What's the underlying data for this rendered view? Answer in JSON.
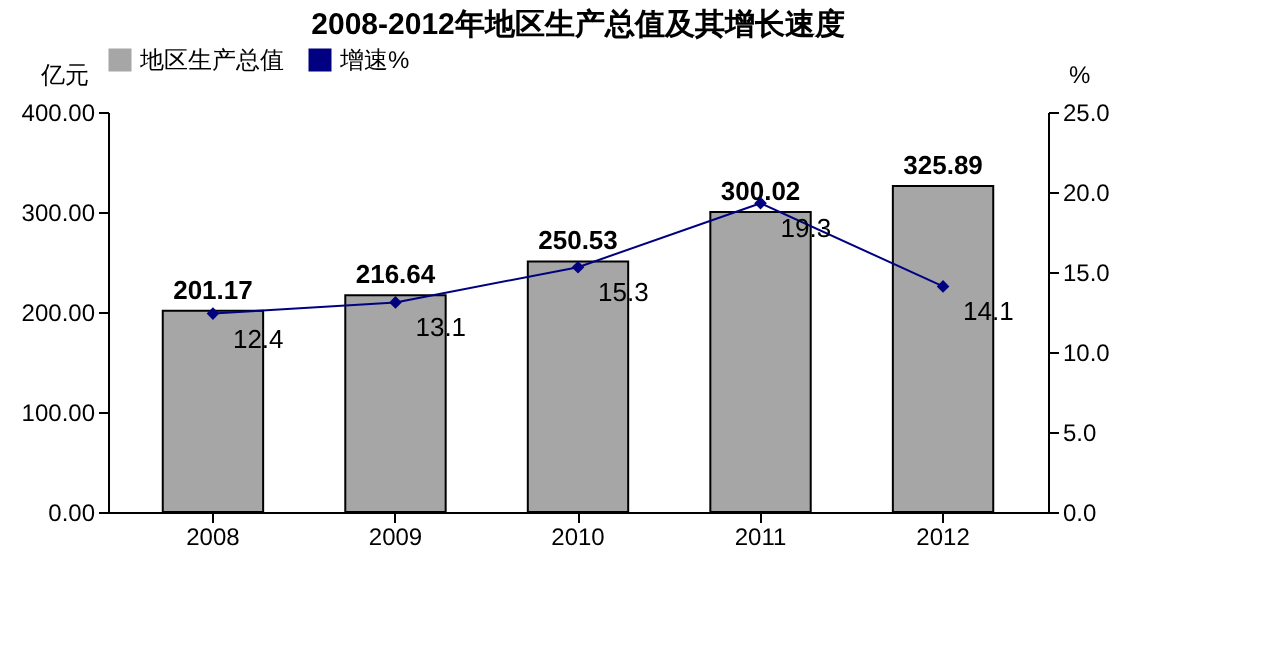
{
  "chart_data": {
    "type": "bar",
    "title": "2008-2012年地区生产总值及其增长速度",
    "ylabel": "亿元",
    "y2label": "%",
    "categories": [
      "2008",
      "2009",
      "2010",
      "2011",
      "2012"
    ],
    "series": [
      {
        "name": "地区生产总值",
        "color": "#a6a6a6",
        "values": [
          201.17,
          216.64,
          250.53,
          300.02,
          325.89
        ]
      },
      {
        "name": "增速%",
        "type": "line",
        "axis": "y2",
        "color": "#000080",
        "values": [
          12.4,
          13.1,
          15.3,
          19.3,
          14.1
        ]
      }
    ],
    "ylim": [
      0,
      400
    ],
    "yticks": [
      {
        "value": 0,
        "label": "0.00"
      },
      {
        "value": 100,
        "label": "100.00"
      },
      {
        "value": 200,
        "label": "200.00"
      },
      {
        "value": 300,
        "label": "300.00"
      },
      {
        "value": 400,
        "label": "400.00"
      }
    ],
    "y2lim": [
      0,
      25
    ],
    "y2ticks": [
      {
        "value": 0,
        "label": "0.0"
      },
      {
        "value": 5,
        "label": "5.0"
      },
      {
        "value": 10,
        "label": "10.0"
      },
      {
        "value": 15,
        "label": "15.0"
      },
      {
        "value": 20,
        "label": "20.0"
      },
      {
        "value": 25,
        "label": "25.0"
      }
    ],
    "data_labels": true,
    "legend": "top",
    "marker": "diamond",
    "line_style": "solid"
  }
}
